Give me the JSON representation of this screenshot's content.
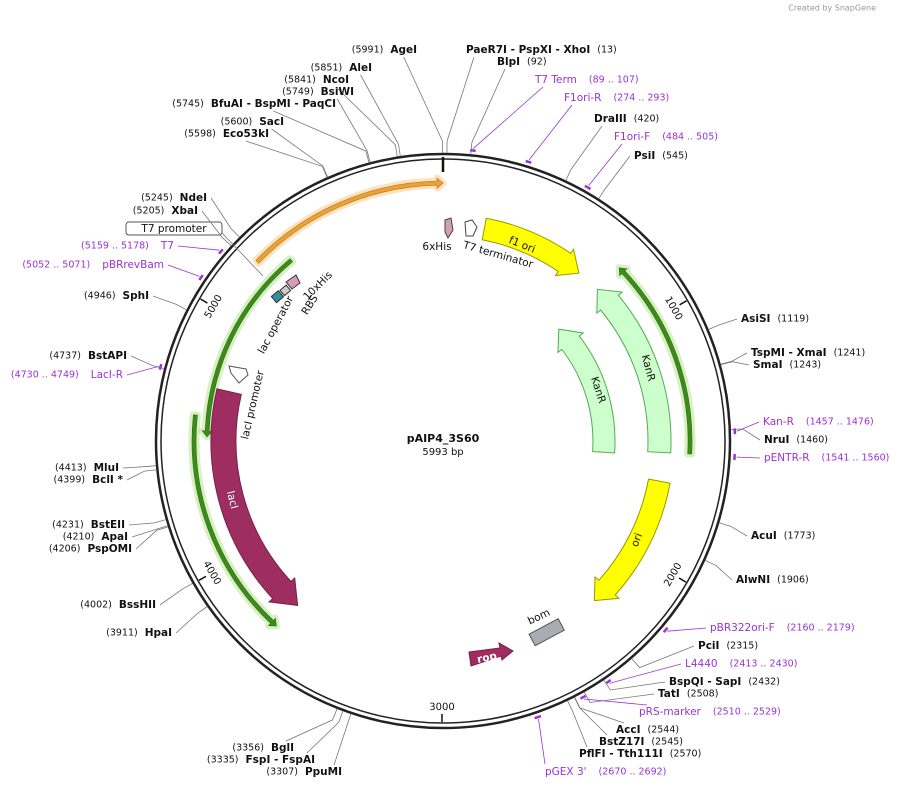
{
  "credit": "Created by SnapGene",
  "title": "pAIP4_3S60",
  "size": {
    "value": 5993,
    "label": "5993 bp"
  },
  "ticks": [
    1000,
    2000,
    3000,
    4000,
    5000
  ],
  "features": [
    "f1 ori",
    "KanR",
    "KanR",
    "ori",
    "lacI",
    "lacI promoter",
    "lac operator",
    "RBS",
    "10xHis",
    "T7 promoter",
    "6xHis",
    "T7 terminator",
    "bom",
    "rop"
  ],
  "enzymes": [
    {
      "label": "AgeI",
      "pos": 5991,
      "pos_label": "(5991)"
    },
    {
      "label": "PaeR7I - PspXI - XhoI",
      "pos": 13,
      "pos_label": "(13)"
    },
    {
      "label": "BlpI",
      "pos": 92,
      "pos_label": "(92)"
    },
    {
      "label": "AleI",
      "pos": 5851,
      "pos_label": "(5851)"
    },
    {
      "label": "NcoI",
      "pos": 5841,
      "pos_label": "(5841)"
    },
    {
      "label": "BsiWI",
      "pos": 5749,
      "pos_label": "(5749)"
    },
    {
      "label": "BfuAI - BspMI - PaqCI",
      "pos": 5745,
      "pos_label": "(5745)"
    },
    {
      "label": "SacI",
      "pos": 5600,
      "pos_label": "(5600)"
    },
    {
      "label": "Eco53kI",
      "pos": 5598,
      "pos_label": "(5598)"
    },
    {
      "label": "DraIII",
      "pos": 420,
      "pos_label": "(420)"
    },
    {
      "label": "PsiI",
      "pos": 545,
      "pos_label": "(545)"
    },
    {
      "label": "NdeI",
      "pos": 5245,
      "pos_label": "(5245)"
    },
    {
      "label": "XbaI",
      "pos": 5205,
      "pos_label": "(5205)"
    },
    {
      "label": "SphI",
      "pos": 4946,
      "pos_label": "(4946)"
    },
    {
      "label": "BstAPI",
      "pos": 4737,
      "pos_label": "(4737)"
    },
    {
      "label": "MluI",
      "pos": 4413,
      "pos_label": "(4413)"
    },
    {
      "label": "BclI *",
      "pos": 4399,
      "pos_label": "(4399)"
    },
    {
      "label": "BstEII",
      "pos": 4231,
      "pos_label": "(4231)"
    },
    {
      "label": "ApaI",
      "pos": 4210,
      "pos_label": "(4210)"
    },
    {
      "label": "PspOMI",
      "pos": 4206,
      "pos_label": "(4206)"
    },
    {
      "label": "BssHII",
      "pos": 4002,
      "pos_label": "(4002)"
    },
    {
      "label": "HpaI",
      "pos": 3911,
      "pos_label": "(3911)"
    },
    {
      "label": "BglI",
      "pos": 3356,
      "pos_label": "(3356)"
    },
    {
      "label": "FspI - FspAI",
      "pos": 3335,
      "pos_label": "(3335)"
    },
    {
      "label": "PpuMI",
      "pos": 3307,
      "pos_label": "(3307)"
    },
    {
      "label": "AsiSI",
      "pos": 1119,
      "pos_label": "(1119)"
    },
    {
      "label": "TspMI - XmaI",
      "pos": 1241,
      "pos_label": "(1241)"
    },
    {
      "label": "SmaI",
      "pos": 1243,
      "pos_label": "(1243)"
    },
    {
      "label": "NruI",
      "pos": 1460,
      "pos_label": "(1460)"
    },
    {
      "label": "AcuI",
      "pos": 1773,
      "pos_label": "(1773)"
    },
    {
      "label": "AlwNI",
      "pos": 1906,
      "pos_label": "(1906)"
    },
    {
      "label": "PciI",
      "pos": 2315,
      "pos_label": "(2315)"
    },
    {
      "label": "BspQI - SapI",
      "pos": 2432,
      "pos_label": "(2432)"
    },
    {
      "label": "TatI",
      "pos": 2508,
      "pos_label": "(2508)"
    },
    {
      "label": "AccI",
      "pos": 2544,
      "pos_label": "(2544)"
    },
    {
      "label": "BstZ17I",
      "pos": 2545,
      "pos_label": "(2545)"
    },
    {
      "label": "PflFI - Tth111I",
      "pos": 2570,
      "pos_label": "(2570)"
    }
  ],
  "primers": [
    {
      "label": "T7 Term",
      "start": 89,
      "end": 107,
      "range_label": "(89 .. 107)"
    },
    {
      "label": "F1ori-R",
      "start": 274,
      "end": 293,
      "range_label": "(274 .. 293)"
    },
    {
      "label": "F1ori-F",
      "start": 484,
      "end": 505,
      "range_label": "(484 .. 505)"
    },
    {
      "label": "T7",
      "start": 5159,
      "end": 5178,
      "range_label": "(5159 .. 5178)"
    },
    {
      "label": "pBRrevBam",
      "start": 5052,
      "end": 5071,
      "range_label": "(5052 .. 5071)"
    },
    {
      "label": "LacI-R",
      "start": 4730,
      "end": 4749,
      "range_label": "(4730 .. 4749)"
    },
    {
      "label": "Kan-R",
      "start": 1457,
      "end": 1476,
      "range_label": "(1457 .. 1476)"
    },
    {
      "label": "pENTR-R",
      "start": 1541,
      "end": 1560,
      "range_label": "(1541 .. 1560)"
    },
    {
      "label": "pBR322ori-F",
      "start": 2160,
      "end": 2179,
      "range_label": "(2160 .. 2179)"
    },
    {
      "label": "L4440",
      "start": 2413,
      "end": 2430,
      "range_label": "(2413 .. 2430)"
    },
    {
      "label": "pRS-marker",
      "start": 2510,
      "end": 2529,
      "range_label": "(2510 .. 2529)"
    },
    {
      "label": "pGEX 3'",
      "start": 2670,
      "end": 2692,
      "range_label": "(2670 .. 2692)"
    }
  ]
}
